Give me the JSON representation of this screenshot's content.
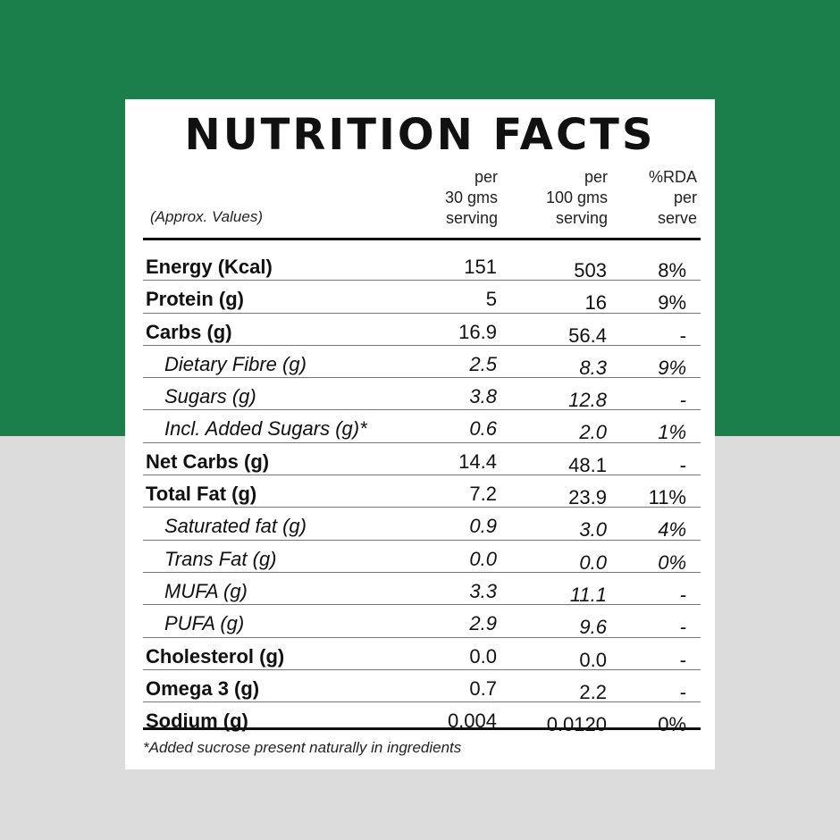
{
  "title": "NUTRITION FACTS",
  "header": {
    "approx": "(Approx. Values)",
    "col1": [
      "per",
      "30 gms",
      "serving"
    ],
    "col2": [
      "per",
      "100 gms",
      "serving"
    ],
    "col3": [
      "%RDA",
      "per",
      "serve"
    ]
  },
  "rows": [
    {
      "label": "Energy (Kcal)",
      "v30": "151",
      "v100": "503",
      "rda": "8%",
      "type": "main"
    },
    {
      "label": "Protein (g)",
      "v30": "5",
      "v100": "16",
      "rda": "9%",
      "type": "main"
    },
    {
      "label": "Carbs (g)",
      "v30": "16.9",
      "v100": "56.4",
      "rda": "-",
      "type": "main"
    },
    {
      "label": "Dietary Fibre (g)",
      "v30": "2.5",
      "v100": "8.3",
      "rda": "9%",
      "type": "sub"
    },
    {
      "label": "Sugars (g)",
      "v30": "3.8",
      "v100": "12.8",
      "rda": "-",
      "type": "sub"
    },
    {
      "label": "Incl. Added Sugars (g)*",
      "v30": "0.6",
      "v100": "2.0",
      "rda": "1%",
      "type": "sub"
    },
    {
      "label": "Net Carbs (g)",
      "v30": "14.4",
      "v100": "48.1",
      "rda": "-",
      "type": "main"
    },
    {
      "label": "Total Fat (g)",
      "v30": "7.2",
      "v100": "23.9",
      "rda": "11%",
      "type": "main"
    },
    {
      "label": "Saturated fat (g)",
      "v30": "0.9",
      "v100": "3.0",
      "rda": "4%",
      "type": "sub"
    },
    {
      "label": "Trans Fat (g)",
      "v30": "0.0",
      "v100": "0.0",
      "rda": "0%",
      "type": "sub"
    },
    {
      "label": "MUFA (g)",
      "v30": "3.3",
      "v100": "11.1",
      "rda": "-",
      "type": "sub"
    },
    {
      "label": "PUFA (g)",
      "v30": "2.9",
      "v100": "9.6",
      "rda": "-",
      "type": "sub"
    },
    {
      "label": "Cholesterol (g)",
      "v30": "0.0",
      "v100": "0.0",
      "rda": "-",
      "type": "main"
    },
    {
      "label": "Omega 3 (g)",
      "v30": "0.7",
      "v100": "2.2",
      "rda": "-",
      "type": "main"
    },
    {
      "label": "Sodium (g)",
      "v30": "0.004",
      "v100": "0.0120",
      "rda": "0%",
      "type": "main"
    }
  ],
  "footnote": "*Added sucrose present naturally in ingredients",
  "colors": {
    "top_bg": "#1b7f4b",
    "bottom_bg": "#dcdcdc",
    "card": "#ffffff",
    "text": "#111111"
  }
}
